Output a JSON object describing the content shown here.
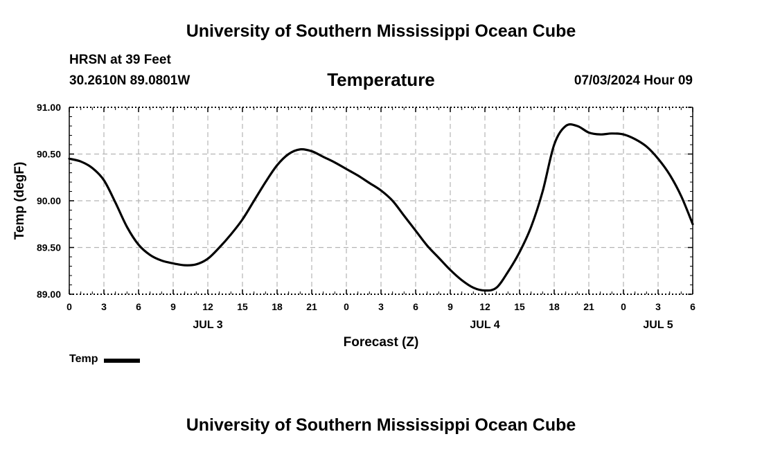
{
  "header": {
    "title": "University of Southern Mississippi Ocean Cube",
    "station": "HRSN at 39 Feet",
    "coordinates": "30.2610N  89.0801W",
    "timestamp": "07/03/2024 Hour 09"
  },
  "footer": {
    "title": "University of Southern Mississippi Ocean Cube"
  },
  "chart_data": {
    "type": "line",
    "title": "Temperature",
    "xlabel": "Forecast (Z)",
    "ylabel": "Temp (degF)",
    "ylim": [
      89.0,
      91.0
    ],
    "xlim": [
      0,
      54
    ],
    "y_ticks": [
      "89.00",
      "89.50",
      "90.00",
      "90.50",
      "91.00"
    ],
    "x_tick_labels": [
      "0",
      "3",
      "6",
      "9",
      "12",
      "15",
      "18",
      "21",
      "0",
      "3",
      "6",
      "9",
      "12",
      "15",
      "18",
      "21",
      "0",
      "3",
      "6"
    ],
    "date_labels": [
      {
        "label": "JUL 3",
        "hour": 12
      },
      {
        "label": "JUL 4",
        "hour": 36
      },
      {
        "label": "JUL 5",
        "hour": 51
      }
    ],
    "grid": true,
    "legend_position": "bottom-left",
    "series": [
      {
        "name": "Temp",
        "color": "#000000",
        "x": [
          0,
          1,
          2,
          3,
          4,
          5,
          6,
          7,
          8,
          9,
          10,
          11,
          12,
          13,
          14,
          15,
          16,
          17,
          18,
          19,
          20,
          21,
          22,
          23,
          24,
          25,
          26,
          27,
          28,
          29,
          30,
          31,
          32,
          33,
          34,
          35,
          36,
          37,
          38,
          39,
          40,
          41,
          42,
          43,
          44,
          45,
          46,
          47,
          48,
          49,
          50,
          51,
          52,
          53,
          54
        ],
        "values": [
          90.45,
          90.42,
          90.35,
          90.22,
          89.98,
          89.72,
          89.53,
          89.42,
          89.36,
          89.33,
          89.31,
          89.32,
          89.38,
          89.5,
          89.64,
          89.8,
          90.0,
          90.2,
          90.38,
          90.5,
          90.55,
          90.53,
          90.47,
          90.41,
          90.34,
          90.27,
          90.19,
          90.11,
          90.0,
          89.84,
          89.68,
          89.52,
          89.39,
          89.26,
          89.15,
          89.07,
          89.04,
          89.07,
          89.24,
          89.45,
          89.72,
          90.1,
          90.6,
          90.8,
          90.8,
          90.73,
          90.71,
          90.72,
          90.71,
          90.66,
          90.58,
          90.45,
          90.28,
          90.05,
          89.75
        ]
      }
    ]
  }
}
